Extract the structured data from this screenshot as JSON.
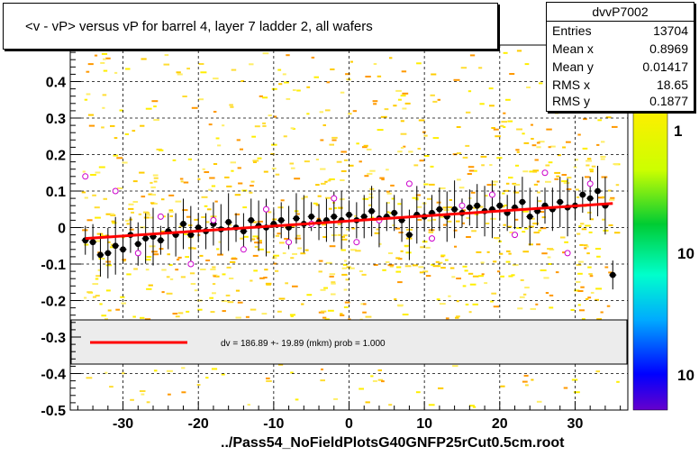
{
  "title": "<v - vP>       versus   vP for barrel 4, layer 7 ladder 2, all wafers",
  "stats": {
    "name": "dvvP7002",
    "rows": [
      {
        "label": "Entries",
        "value": "13704"
      },
      {
        "label": "Mean x",
        "value": "0.8969"
      },
      {
        "label": "Mean y",
        "value": "0.01417"
      },
      {
        "label": "RMS x",
        "value": "18.65"
      },
      {
        "label": "RMS y",
        "value": "0.1877"
      }
    ]
  },
  "legend": {
    "text": "dv =  186.89 +- 19.89 (mkm) prob = 1.000"
  },
  "footer": "../Pass54_NoFieldPlotsG40GNFP25rCut0.5cm.root",
  "colors": {
    "fit": "#ff0000",
    "points": "#000000",
    "open_markers": "#cc00cc"
  },
  "chart_data": {
    "type": "scatter",
    "xlim": [
      -37,
      37
    ],
    "ylim": [
      -0.5,
      0.5
    ],
    "x_ticks": [
      -30,
      -20,
      -10,
      0,
      10,
      20,
      30
    ],
    "x_tick_labels": [
      "-30",
      "-20",
      "-10",
      "0",
      "10",
      "20",
      "30"
    ],
    "y_ticks": [
      -0.5,
      -0.4,
      -0.3,
      -0.2,
      -0.1,
      0,
      0.1,
      0.2,
      0.3,
      0.4
    ],
    "y_tick_labels": [
      "-0.5",
      "-0.4",
      "-0.3",
      "-0.2",
      "-0.1",
      "0",
      "0.1",
      "0.2",
      "0.3",
      "0.4"
    ],
    "grid": true,
    "colorbar_labels": [
      "1",
      "10",
      "10"
    ],
    "fit_line": {
      "x": [
        -35,
        35
      ],
      "y": [
        -0.03,
        0.066
      ]
    },
    "profile": {
      "x": [
        -35,
        -34,
        -33,
        -32,
        -31,
        -30,
        -29,
        -28,
        -27,
        -26,
        -25,
        -24,
        -23,
        -22,
        -21,
        -20,
        -19,
        -18,
        -17,
        -16,
        -15,
        -14,
        -13,
        -12,
        -11,
        -10,
        -9,
        -8,
        -7,
        -6,
        -5,
        -4,
        -3,
        -2,
        -1,
        0,
        1,
        2,
        3,
        4,
        5,
        6,
        7,
        8,
        9,
        10,
        11,
        12,
        13,
        14,
        15,
        16,
        17,
        18,
        19,
        20,
        21,
        22,
        23,
        24,
        25,
        26,
        27,
        28,
        29,
        30,
        31,
        32,
        33,
        34,
        35
      ],
      "y": [
        -0.035,
        -0.04,
        -0.075,
        -0.07,
        -0.05,
        -0.06,
        -0.02,
        -0.045,
        -0.03,
        -0.025,
        -0.035,
        -0.01,
        -0.02,
        0.01,
        -0.02,
        0.0,
        -0.01,
        0.01,
        -0.005,
        0.015,
        0.0,
        -0.01,
        0.02,
        0.005,
        0.0,
        0.01,
        0.02,
        0.0,
        0.025,
        0.01,
        0.03,
        0.015,
        0.02,
        0.03,
        0.02,
        0.035,
        0.02,
        0.03,
        0.045,
        0.025,
        0.03,
        0.04,
        0.02,
        -0.02,
        0.035,
        0.03,
        0.04,
        0.05,
        0.03,
        0.05,
        0.04,
        0.055,
        0.06,
        0.045,
        0.05,
        0.06,
        0.04,
        0.055,
        0.07,
        0.03,
        0.045,
        0.06,
        0.05,
        0.07,
        0.055,
        0.06,
        0.09,
        0.08,
        0.1,
        0.06,
        -0.13
      ]
    },
    "open_points": {
      "x": [
        -35,
        -31,
        -28,
        -25,
        -21,
        -18,
        -14,
        -11,
        -8,
        -5,
        -2,
        1,
        4,
        8,
        11,
        15,
        19,
        22,
        26,
        29,
        32
      ],
      "y": [
        0.14,
        0.1,
        -0.07,
        0.03,
        -0.1,
        0.02,
        -0.06,
        0.05,
        -0.04,
        0.01,
        0.08,
        -0.04,
        0.02,
        0.12,
        -0.03,
        0.06,
        0.09,
        -0.02,
        0.15,
        -0.07,
        0.12
      ]
    }
  }
}
